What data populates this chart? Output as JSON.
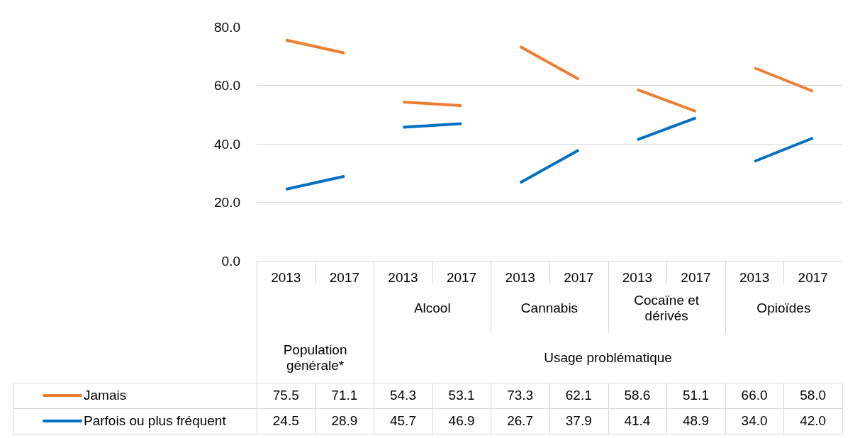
{
  "chart_data": {
    "type": "line",
    "categories": [
      "2013",
      "2017",
      "2013",
      "2017",
      "2013",
      "2017",
      "2013",
      "2017",
      "2013",
      "2017"
    ],
    "series": [
      {
        "name": "Jamais",
        "color": "#ed7d31",
        "values": [
          75.5,
          71.1,
          54.3,
          53.1,
          73.3,
          62.1,
          58.6,
          51.1,
          66.0,
          58.0
        ],
        "value_labels": [
          "75.5",
          "71.1",
          "54.3",
          "53.1",
          "73.3",
          "62.1",
          "58.6",
          "51.1",
          "66.0",
          "58.0"
        ]
      },
      {
        "name": "Parfois ou plus fréquent",
        "color": "#0070c0",
        "values": [
          24.5,
          28.9,
          45.7,
          46.9,
          26.7,
          37.9,
          41.4,
          48.9,
          34.0,
          42.0
        ],
        "value_labels": [
          "24.5",
          "28.9",
          "45.7",
          "46.9",
          "26.7",
          "37.9",
          "41.4",
          "48.9",
          "34.0",
          "42.0"
        ]
      }
    ],
    "annotations": [
      "Population générale*",
      "Alcool",
      "Cannabis",
      "Cocaïne et dérivés",
      "Opioïdes",
      "Usage problématique"
    ],
    "ylim": [
      0,
      80
    ],
    "yticks": [
      {
        "value": 0,
        "label": "0.0"
      },
      {
        "value": 20,
        "label": "20.0"
      },
      {
        "value": 40,
        "label": "40.0"
      },
      {
        "value": 60,
        "label": "60.0"
      },
      {
        "value": 80,
        "label": "80.0"
      }
    ],
    "grid": "y",
    "legend": "bottom left",
    "marker": "none",
    "line_style": "solid"
  }
}
